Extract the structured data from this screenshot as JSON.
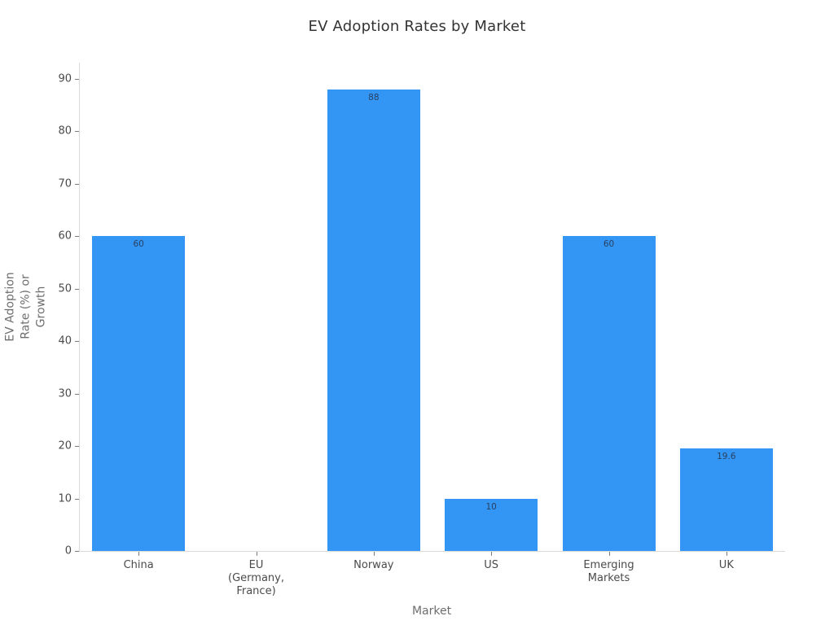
{
  "chart_data": {
    "type": "bar",
    "title": "EV Adoption Rates by Market",
    "xlabel": "Market",
    "ylabel": "EV Adoption Rate (%) or Growth",
    "ylabel_lines": [
      "EV Adoption",
      "Rate (%) or",
      "Growth"
    ],
    "categories": [
      "China",
      "EU (Germany, France)",
      "Norway",
      "US",
      "Emerging Markets",
      "UK"
    ],
    "category_lines": [
      [
        "China"
      ],
      [
        "EU",
        "(Germany,",
        "France)"
      ],
      [
        "Norway"
      ],
      [
        "US"
      ],
      [
        "Emerging",
        "Markets"
      ],
      [
        "UK"
      ]
    ],
    "values": [
      60,
      0,
      88,
      10,
      60,
      19.6
    ],
    "bar_labels": [
      "60",
      "",
      "88",
      "10",
      "60",
      "19.6"
    ],
    "yticks": [
      0,
      10,
      20,
      30,
      40,
      50,
      60,
      70,
      80,
      90
    ],
    "ylim": [
      0,
      93.1
    ],
    "grid": false,
    "legend": null,
    "colors": {
      "bar": "#3396f5",
      "title_text": "#333333",
      "tick_text": "#4a4a4a",
      "tick_mark": "#7c7c7c",
      "axis_title_text": "#6e6e6e",
      "axis_line": "#d9d9d9",
      "bar_label_text": "#2a3f5f"
    }
  }
}
